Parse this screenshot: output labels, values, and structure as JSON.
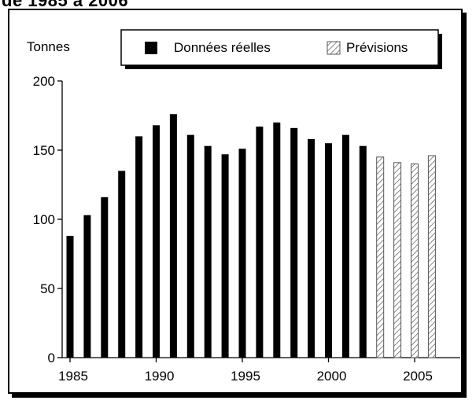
{
  "header": {
    "title_fragment": "de 1985 à 2006"
  },
  "colors": {
    "actual": "#000000",
    "forecast_stroke": "#555555",
    "frame": "#000000"
  },
  "legend": {
    "actual_label": "Données réelles",
    "forecast_label": "Prévisions"
  },
  "chart_data": {
    "type": "bar",
    "title": "",
    "xlabel": "",
    "ylabel": "Tonnes",
    "ylim": [
      0,
      200
    ],
    "yticks": [
      0,
      50,
      100,
      150,
      200
    ],
    "xticks": [
      1985,
      1990,
      1995,
      2000,
      2005
    ],
    "xlim": [
      1985,
      2006
    ],
    "legend_position": "top",
    "grid": false,
    "series": [
      {
        "name": "Données réelles",
        "style": "solid",
        "x": [
          1985,
          1986,
          1987,
          1988,
          1989,
          1990,
          1991,
          1992,
          1993,
          1994,
          1995,
          1996,
          1997,
          1998,
          1999,
          2000,
          2001,
          2002
        ],
        "values": [
          88,
          103,
          116,
          135,
          160,
          168,
          176,
          161,
          153,
          147,
          151,
          167,
          170,
          166,
          158,
          155,
          161,
          153
        ]
      },
      {
        "name": "Prévisions",
        "style": "hatched",
        "x": [
          2003,
          2004,
          2005,
          2006
        ],
        "values": [
          145,
          141,
          140,
          146
        ]
      }
    ]
  }
}
